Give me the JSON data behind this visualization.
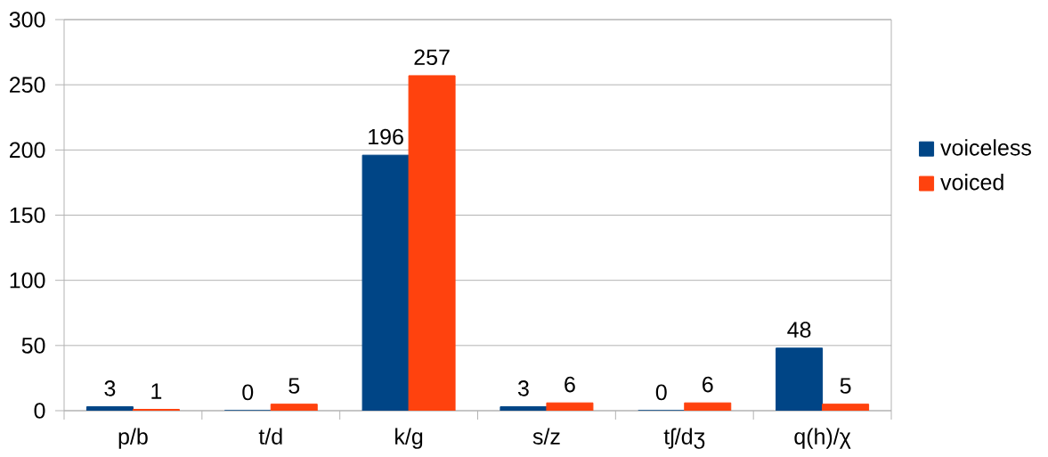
{
  "chart_data": {
    "type": "bar",
    "categories": [
      "p/b",
      "t/d",
      "k/g",
      "s/z",
      "tʃ/dʒ",
      "q(h)/χ"
    ],
    "series": [
      {
        "name": "voiceless",
        "color": "#004586",
        "values": [
          3,
          0,
          196,
          3,
          0,
          48
        ]
      },
      {
        "name": "voiced",
        "color": "#ff420e",
        "values": [
          1,
          5,
          257,
          6,
          6,
          5
        ]
      }
    ],
    "ylim": [
      0,
      300
    ],
    "yticks": [
      0,
      50,
      100,
      150,
      200,
      250,
      300
    ],
    "grid": "y",
    "legend": "right",
    "data_labels": true
  }
}
